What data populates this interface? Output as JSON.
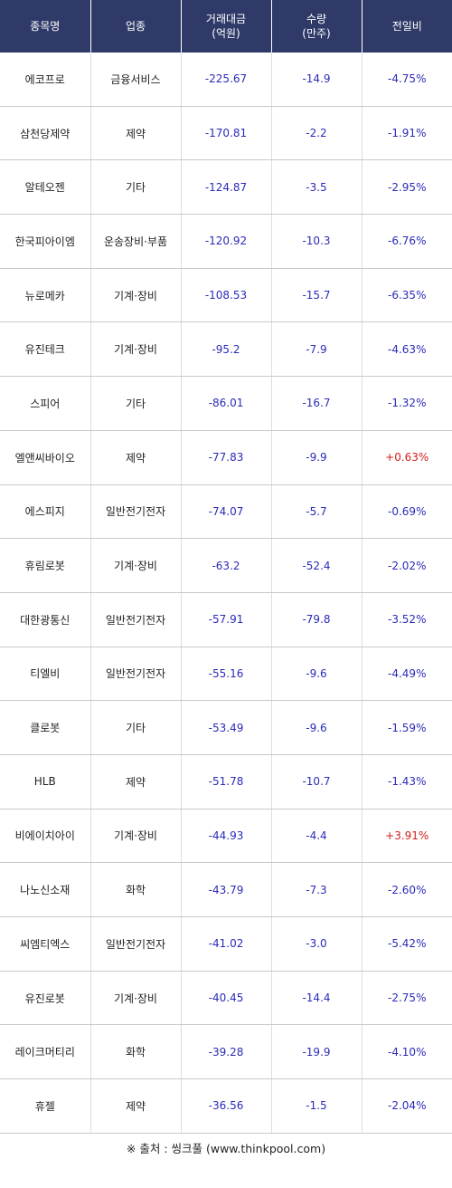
{
  "header": {
    "name": "종목명",
    "sector": "업종",
    "amount_line1": "거래대금",
    "amount_line2": "(억원)",
    "qty_line1": "수량",
    "qty_line2": "(만주)",
    "change": "전일비"
  },
  "rows": [
    {
      "name": "에코프로",
      "sector": "금융서비스",
      "amount": "-225.67",
      "qty": "-14.9",
      "change": "-4.75%"
    },
    {
      "name": "삼천당제약",
      "sector": "제약",
      "amount": "-170.81",
      "qty": "-2.2",
      "change": "-1.91%"
    },
    {
      "name": "알테오젠",
      "sector": "기타",
      "amount": "-124.87",
      "qty": "-3.5",
      "change": "-2.95%"
    },
    {
      "name": "한국피아이엠",
      "sector": "운송장비·부품",
      "amount": "-120.92",
      "qty": "-10.3",
      "change": "-6.76%"
    },
    {
      "name": "뉴로메카",
      "sector": "기계·장비",
      "amount": "-108.53",
      "qty": "-15.7",
      "change": "-6.35%"
    },
    {
      "name": "유진테크",
      "sector": "기계·장비",
      "amount": "-95.2",
      "qty": "-7.9",
      "change": "-4.63%"
    },
    {
      "name": "스피어",
      "sector": "기타",
      "amount": "-86.01",
      "qty": "-16.7",
      "change": "-1.32%"
    },
    {
      "name": "엘앤씨바이오",
      "sector": "제약",
      "amount": "-77.83",
      "qty": "-9.9",
      "change": "+0.63%"
    },
    {
      "name": "에스피지",
      "sector": "일반전기전자",
      "amount": "-74.07",
      "qty": "-5.7",
      "change": "-0.69%"
    },
    {
      "name": "휴림로봇",
      "sector": "기계·장비",
      "amount": "-63.2",
      "qty": "-52.4",
      "change": "-2.02%"
    },
    {
      "name": "대한광통신",
      "sector": "일반전기전자",
      "amount": "-57.91",
      "qty": "-79.8",
      "change": "-3.52%"
    },
    {
      "name": "티엘비",
      "sector": "일반전기전자",
      "amount": "-55.16",
      "qty": "-9.6",
      "change": "-4.49%"
    },
    {
      "name": "클로봇",
      "sector": "기타",
      "amount": "-53.49",
      "qty": "-9.6",
      "change": "-1.59%"
    },
    {
      "name": "HLB",
      "sector": "제약",
      "amount": "-51.78",
      "qty": "-10.7",
      "change": "-1.43%"
    },
    {
      "name": "비에이치아이",
      "sector": "기계·장비",
      "amount": "-44.93",
      "qty": "-4.4",
      "change": "+3.91%"
    },
    {
      "name": "나노신소재",
      "sector": "화학",
      "amount": "-43.79",
      "qty": "-7.3",
      "change": "-2.60%"
    },
    {
      "name": "씨엠티엑스",
      "sector": "일반전기전자",
      "amount": "-41.02",
      "qty": "-3.0",
      "change": "-5.42%"
    },
    {
      "name": "유진로봇",
      "sector": "기계·장비",
      "amount": "-40.45",
      "qty": "-14.4",
      "change": "-2.75%"
    },
    {
      "name": "레이크머티리",
      "sector": "화학",
      "amount": "-39.28",
      "qty": "-19.9",
      "change": "-4.10%"
    },
    {
      "name": "휴젤",
      "sector": "제약",
      "amount": "-36.56",
      "qty": "-1.5",
      "change": "-2.04%"
    }
  ],
  "source": "※ 출처 : 씽크풀 (www.thinkpool.com)",
  "colors": {
    "header_bg": "#2f3a68",
    "negative": "#2b2bb8",
    "positive": "#d0201c"
  }
}
